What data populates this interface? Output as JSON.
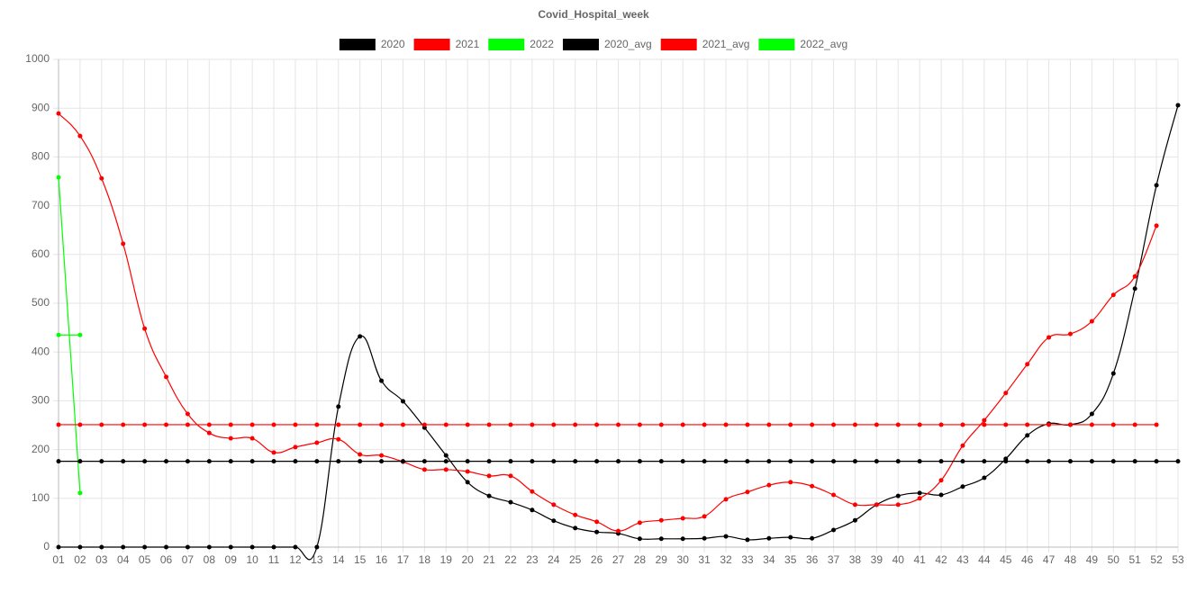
{
  "chart_data": {
    "type": "line",
    "title": "Covid_Hospital_week",
    "categories": [
      "01",
      "02",
      "03",
      "04",
      "05",
      "06",
      "07",
      "08",
      "09",
      "10",
      "11",
      "12",
      "13",
      "14",
      "15",
      "16",
      "17",
      "18",
      "19",
      "20",
      "21",
      "22",
      "23",
      "24",
      "25",
      "26",
      "27",
      "28",
      "29",
      "30",
      "31",
      "32",
      "33",
      "34",
      "35",
      "36",
      "37",
      "38",
      "39",
      "40",
      "41",
      "42",
      "43",
      "44",
      "45",
      "46",
      "47",
      "48",
      "49",
      "50",
      "51",
      "52",
      "53"
    ],
    "ylim": [
      0,
      1000
    ],
    "yticks": [
      0,
      100,
      200,
      300,
      400,
      500,
      600,
      700,
      800,
      900,
      1000
    ],
    "grid": true,
    "legend": "top",
    "series": [
      {
        "name": "2020",
        "color": "#000000",
        "values": [
          0,
          0,
          0,
          0,
          0,
          0,
          0,
          0,
          0,
          0,
          0,
          0,
          0,
          288,
          432,
          341,
          299,
          245,
          188,
          133,
          105,
          92,
          76,
          54,
          39,
          31,
          28,
          17,
          17,
          17,
          18,
          22,
          15,
          18,
          20,
          18,
          35,
          55,
          87,
          105,
          111,
          107,
          124,
          142,
          181,
          229,
          253,
          251,
          273,
          356,
          530,
          742,
          906
        ]
      },
      {
        "name": "2021",
        "color": "#ff0000",
        "values": [
          889,
          843,
          756,
          622,
          448,
          349,
          273,
          234,
          223,
          223,
          194,
          205,
          214,
          221,
          190,
          188,
          175,
          159,
          159,
          155,
          146,
          146,
          114,
          87,
          66,
          52,
          33,
          50,
          55,
          59,
          63,
          98,
          113,
          127,
          133,
          125,
          107,
          87,
          87,
          87,
          100,
          137,
          208,
          260,
          316,
          375,
          430,
          437,
          463,
          517,
          555,
          659,
          null
        ]
      },
      {
        "name": "2022",
        "color": "#00ff00",
        "values": [
          758,
          111,
          null,
          null,
          null,
          null,
          null,
          null,
          null,
          null,
          null,
          null,
          null,
          null,
          null,
          null,
          null,
          null,
          null,
          null,
          null,
          null,
          null,
          null,
          null,
          null,
          null,
          null,
          null,
          null,
          null,
          null,
          null,
          null,
          null,
          null,
          null,
          null,
          null,
          null,
          null,
          null,
          null,
          null,
          null,
          null,
          null,
          null,
          null,
          null,
          null,
          null,
          null
        ]
      },
      {
        "name": "2020_avg",
        "color": "#000000",
        "values": [
          176,
          176,
          176,
          176,
          176,
          176,
          176,
          176,
          176,
          176,
          176,
          176,
          176,
          176,
          176,
          176,
          176,
          176,
          176,
          176,
          176,
          176,
          176,
          176,
          176,
          176,
          176,
          176,
          176,
          176,
          176,
          176,
          176,
          176,
          176,
          176,
          176,
          176,
          176,
          176,
          176,
          176,
          176,
          176,
          176,
          176,
          176,
          176,
          176,
          176,
          176,
          176,
          176
        ]
      },
      {
        "name": "2021_avg",
        "color": "#ff0000",
        "values": [
          251,
          251,
          251,
          251,
          251,
          251,
          251,
          251,
          251,
          251,
          251,
          251,
          251,
          251,
          251,
          251,
          251,
          251,
          251,
          251,
          251,
          251,
          251,
          251,
          251,
          251,
          251,
          251,
          251,
          251,
          251,
          251,
          251,
          251,
          251,
          251,
          251,
          251,
          251,
          251,
          251,
          251,
          251,
          251,
          251,
          251,
          251,
          251,
          251,
          251,
          251,
          251,
          null
        ]
      },
      {
        "name": "2022_avg",
        "color": "#00ff00",
        "values": [
          435,
          435,
          null,
          null,
          null,
          null,
          null,
          null,
          null,
          null,
          null,
          null,
          null,
          null,
          null,
          null,
          null,
          null,
          null,
          null,
          null,
          null,
          null,
          null,
          null,
          null,
          null,
          null,
          null,
          null,
          null,
          null,
          null,
          null,
          null,
          null,
          null,
          null,
          null,
          null,
          null,
          null,
          null,
          null,
          null,
          null,
          null,
          null,
          null,
          null,
          null,
          null,
          null
        ]
      }
    ]
  }
}
